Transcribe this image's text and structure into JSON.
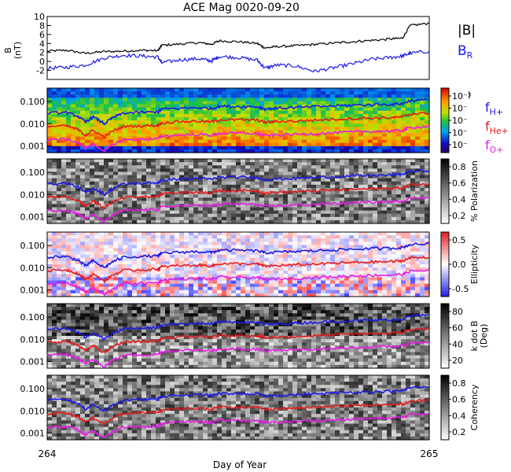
{
  "title": "ACE Mag 0020-09-20",
  "x_axis": {
    "label": "Day of Year",
    "start": 264,
    "end": 265,
    "tick_labels": [
      "264",
      "265"
    ]
  },
  "legend_top": {
    "b_label": "|B|",
    "br_label": "B",
    "br_sub": "R",
    "b_color": "#000000",
    "br_color": "#1a1ae6"
  },
  "legend_freq": [
    {
      "label": "f",
      "sub": "H+",
      "color": "#1a1ae6"
    },
    {
      "label": "f",
      "sub": "He+",
      "color": "#e61a1a"
    },
    {
      "label": "f",
      "sub": "O+",
      "color": "#e61ae6"
    }
  ],
  "freq_tick_labels": [
    "0.100",
    "0.010",
    "0.001"
  ],
  "panels": [
    {
      "id": "bfield",
      "ylabel": "B",
      "yunit": "(nT)",
      "yticks": [
        "10",
        "8",
        "6",
        "4",
        "2",
        "0",
        "-2"
      ],
      "ylim": [
        -4,
        10
      ]
    },
    {
      "id": "power",
      "ylabel": "",
      "colorbar_ticks": [
        "10⁻³",
        "10⁻",
        "10⁻",
        "10⁻",
        "10⁻"
      ],
      "colorbar_label": ")",
      "colormap": "rainbow"
    },
    {
      "id": "polarization",
      "colorbar_ticks": [
        "0.8",
        "0.6",
        "0.4",
        "0.2"
      ],
      "colorbar_label": "% Polarization",
      "colormap": "gray"
    },
    {
      "id": "ellipticity",
      "colorbar_ticks": [
        "0.5",
        "0.0",
        "-0.5"
      ],
      "colorbar_label": "Ellipticity",
      "colormap": "bwr"
    },
    {
      "id": "kdotb",
      "colorbar_ticks": [
        "80",
        "60",
        "40",
        "20"
      ],
      "colorbar_label": "k dot B",
      "colorbar_label2": "(Deg)",
      "colormap": "gray"
    },
    {
      "id": "coherency",
      "colorbar_ticks": [
        "0.8",
        "0.6",
        "0.4",
        "0.2"
      ],
      "colorbar_label": "Coherency",
      "colormap": "gray"
    }
  ],
  "chart_data": {
    "type": "line",
    "title": "ACE Mag 0020-09-20",
    "xlabel": "Day of Year",
    "xlim": [
      264,
      265
    ],
    "bfield": {
      "ylim": [
        -4,
        10
      ],
      "x": [
        264.0,
        264.05,
        264.1,
        264.15,
        264.2,
        264.25,
        264.29,
        264.3,
        264.35,
        264.4,
        264.43,
        264.45,
        264.5,
        264.55,
        264.57,
        264.6,
        264.65,
        264.7,
        264.75,
        264.8,
        264.85,
        264.9,
        264.93,
        264.95,
        265.0
      ],
      "series": [
        {
          "name": "|B|",
          "values": [
            2.3,
            2.5,
            1.8,
            2.2,
            2.3,
            2.5,
            2.4,
            3.6,
            3.9,
            4.2,
            3.8,
            4.6,
            4.4,
            4.0,
            3.0,
            3.3,
            3.5,
            3.8,
            4.1,
            4.4,
            4.7,
            5.0,
            5.2,
            8.0,
            8.5
          ]
        },
        {
          "name": "B_R",
          "values": [
            -1.5,
            -1.3,
            -0.8,
            0.8,
            1.4,
            1.2,
            1.0,
            -0.3,
            0.4,
            0.6,
            0.1,
            1.1,
            0.9,
            0.3,
            -1.5,
            -0.8,
            -1.0,
            -2.2,
            -1.4,
            -0.5,
            0.5,
            0.9,
            1.2,
            1.8,
            2.3
          ]
        }
      ]
    },
    "frequency_ylim": [
      0.0005,
      0.4
    ],
    "frequency_lines": {
      "x": [
        264.0,
        264.05,
        264.08,
        264.1,
        264.12,
        264.15,
        264.17,
        264.2,
        264.25,
        264.29,
        264.3,
        264.35,
        264.4,
        264.43,
        264.45,
        264.5,
        264.55,
        264.57,
        264.6,
        264.65,
        264.7,
        264.75,
        264.8,
        264.85,
        264.9,
        264.93,
        264.95,
        265.0
      ],
      "series": [
        {
          "name": "f_H+",
          "values": [
            0.03,
            0.032,
            0.022,
            0.012,
            0.02,
            0.01,
            0.018,
            0.03,
            0.032,
            0.034,
            0.045,
            0.05,
            0.053,
            0.048,
            0.06,
            0.06,
            0.058,
            0.046,
            0.05,
            0.053,
            0.058,
            0.063,
            0.068,
            0.072,
            0.075,
            0.08,
            0.11,
            0.12
          ]
        },
        {
          "name": "f_He+",
          "values": [
            0.0075,
            0.008,
            0.0055,
            0.003,
            0.005,
            0.0025,
            0.0045,
            0.0075,
            0.008,
            0.0085,
            0.011,
            0.0125,
            0.013,
            0.012,
            0.015,
            0.015,
            0.0145,
            0.0115,
            0.0125,
            0.0132,
            0.0145,
            0.0158,
            0.017,
            0.018,
            0.0188,
            0.02,
            0.0275,
            0.03
          ]
        },
        {
          "name": "f_O+",
          "values": [
            0.0019,
            0.002,
            0.0014,
            0.0008,
            0.0012,
            0.0006,
            0.0011,
            0.0019,
            0.002,
            0.0021,
            0.0028,
            0.0031,
            0.0033,
            0.003,
            0.0037,
            0.0037,
            0.0036,
            0.0029,
            0.0031,
            0.0033,
            0.0036,
            0.0039,
            0.0042,
            0.0045,
            0.0047,
            0.005,
            0.0069,
            0.0075
          ]
        }
      ]
    }
  }
}
